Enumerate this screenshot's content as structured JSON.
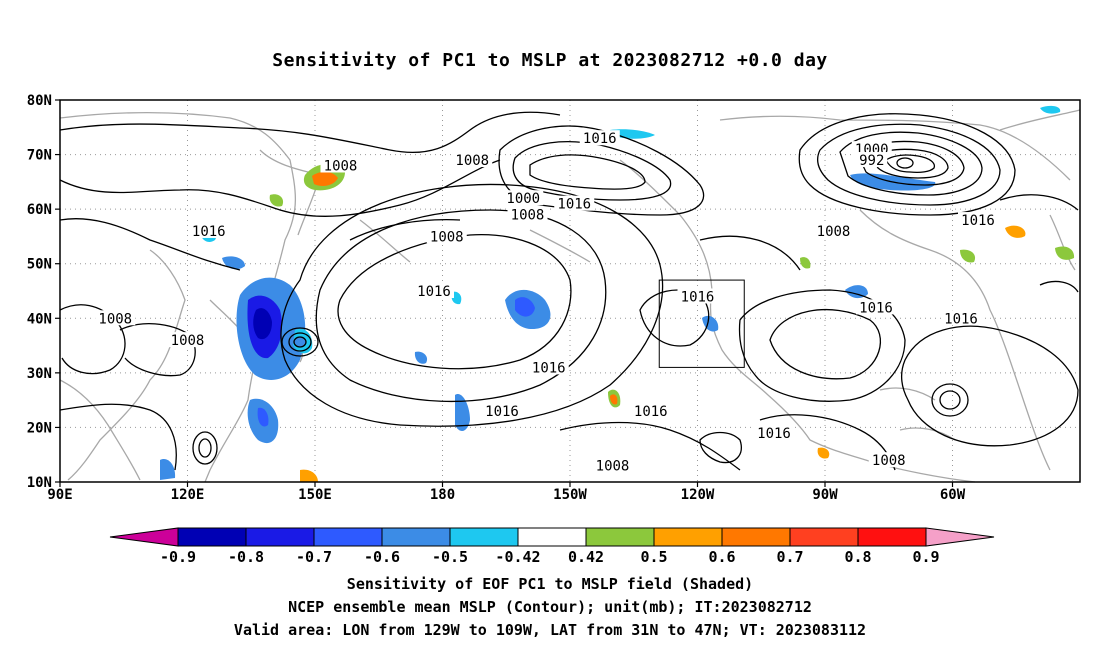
{
  "title": "Sensitivity of PC1 to MSLP at 2023082712 +0.0 day",
  "lat_labels": [
    "80N",
    "70N",
    "60N",
    "50N",
    "40N",
    "30N",
    "20N",
    "10N"
  ],
  "lon_labels": [
    "90E",
    "120E",
    "150E",
    "180",
    "150W",
    "120W",
    "90W",
    "60W"
  ],
  "contour_labels": [
    {
      "text": "1008",
      "lon": 156,
      "lat": 68
    },
    {
      "text": "1008",
      "lon": 187,
      "lat": 69
    },
    {
      "text": "1016",
      "lon": 217,
      "lat": 73
    },
    {
      "text": "1000",
      "lon": 281,
      "lat": 71
    },
    {
      "text": "992",
      "lon": 281,
      "lat": 69
    },
    {
      "text": "1016",
      "lon": 125,
      "lat": 56
    },
    {
      "text": "1000",
      "lon": 199,
      "lat": 62
    },
    {
      "text": "1008",
      "lon": 200,
      "lat": 59
    },
    {
      "text": "1016",
      "lon": 211,
      "lat": 61
    },
    {
      "text": "1008",
      "lon": 181,
      "lat": 55
    },
    {
      "text": "1016",
      "lon": 178,
      "lat": 45
    },
    {
      "text": "1008",
      "lon": 272,
      "lat": 56
    },
    {
      "text": "1016",
      "lon": 306,
      "lat": 58
    },
    {
      "text": "1008",
      "lon": 103,
      "lat": 40
    },
    {
      "text": "1008",
      "lon": 120,
      "lat": 36
    },
    {
      "text": "1016",
      "lon": 205,
      "lat": 31
    },
    {
      "text": "1016",
      "lon": 240,
      "lat": 44
    },
    {
      "text": "1016",
      "lon": 282,
      "lat": 42
    },
    {
      "text": "1016",
      "lon": 302,
      "lat": 40
    },
    {
      "text": "1016",
      "lon": 194,
      "lat": 23
    },
    {
      "text": "1016",
      "lon": 229,
      "lat": 23
    },
    {
      "text": "1016",
      "lon": 258,
      "lat": 19
    },
    {
      "text": "1008",
      "lon": 220,
      "lat": 13
    },
    {
      "text": "1008",
      "lon": 285,
      "lat": 14
    }
  ],
  "region_box": {
    "lon_from": -129,
    "lon_to": -109,
    "lat_from": 31,
    "lat_to": 47
  },
  "colorbar": {
    "colors": [
      "#cc0099",
      "#0000b4",
      "#1a1ae6",
      "#2e5aff",
      "#3c8ce6",
      "#1ec8f0",
      "#ffffff",
      "#8cc83c",
      "#ffa000",
      "#ff7800",
      "#ff4020",
      "#ff1010",
      "#f5a0c8"
    ],
    "labels": [
      "-0.9",
      "-0.8",
      "-0.7",
      "-0.6",
      "-0.5",
      "-0.42",
      "0.42",
      "0.5",
      "0.6",
      "0.7",
      "0.8",
      "0.9"
    ]
  },
  "footer": {
    "line1": "Sensitivity of EOF PC1 to MSLP field (Shaded)",
    "line2": "NCEP ensemble mean MSLP (Contour); unit(mb); IT:2023082712",
    "line3": "Valid area: LON from 129W to 109W, LAT from 31N to 47N; VT: 2023083112"
  }
}
